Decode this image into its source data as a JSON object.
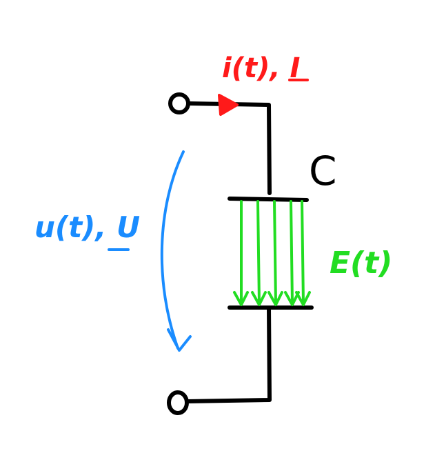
{
  "diagram": {
    "current_label": "i(t), I",
    "capacitance_label": "C",
    "voltage_label": "u(t), U",
    "field_label": "E(t)",
    "colors": {
      "wire": "#000000",
      "current": "#ff1a1a",
      "voltage": "#1a8cff",
      "field": "#22dd22"
    }
  }
}
